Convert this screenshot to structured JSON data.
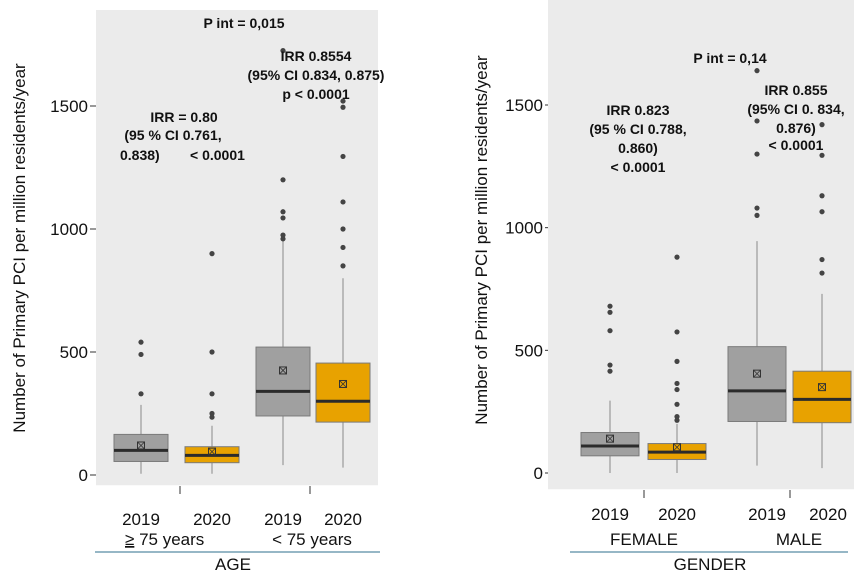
{
  "chart_data": [
    {
      "type": "boxplot",
      "ylabel": "Number of Primary PCI per million residents/year",
      "ylim": [
        -40,
        1870
      ],
      "yticks": [
        0,
        500,
        1000,
        1500
      ],
      "ytick_labels": [
        "0",
        "500",
        "1000",
        "1500"
      ],
      "group_axis_label": "AGE",
      "groups": [
        {
          "label_prefix": "≥",
          "label": " 75 years",
          "years": [
            "2019",
            "2020"
          ]
        },
        {
          "label_prefix": "",
          "label": "< 75 years",
          "years": [
            "2019",
            "2020"
          ]
        }
      ],
      "series": [
        {
          "name": "2019",
          "color": "#a0a0a0"
        },
        {
          "name": "2020",
          "color": "#e8a200"
        }
      ],
      "boxes": [
        {
          "group": "≥ 75 years",
          "year": "2019",
          "min": 5,
          "q1": 55,
          "median": 100,
          "q3": 165,
          "max": 285,
          "mean": 120,
          "outliers": [
            330,
            490,
            540
          ]
        },
        {
          "group": "≥ 75 years",
          "year": "2020",
          "min": 5,
          "q1": 50,
          "median": 80,
          "q3": 115,
          "max": 200,
          "mean": 95,
          "outliers": [
            235,
            250,
            330,
            500,
            900
          ]
        },
        {
          "group": "< 75 years",
          "year": "2019",
          "min": 40,
          "q1": 240,
          "median": 340,
          "q3": 520,
          "max": 950,
          "mean": 425,
          "outliers": [
            960,
            975,
            1045,
            1070,
            1200,
            1725
          ]
        },
        {
          "group": "< 75 years",
          "year": "2020",
          "min": 30,
          "q1": 215,
          "median": 300,
          "q3": 455,
          "max": 800,
          "mean": 370,
          "outliers": [
            850,
            925,
            1000,
            1110,
            1295,
            1495,
            1520
          ]
        }
      ],
      "annotations": {
        "p_int": "P int = 0,015",
        "left": [
          "IRR = 0.80",
          "(95 % CI 0.761,",
          "0.838)",
          "< 0.0001"
        ],
        "right": [
          "IRR 0.8554",
          "(95% CI 0.834, 0.875)",
          "p < 0.0001"
        ]
      }
    },
    {
      "type": "boxplot",
      "ylabel": "Number of Primary PCI per million residents/year",
      "ylim": [
        -40,
        1870
      ],
      "yticks": [
        0,
        500,
        1000,
        1500
      ],
      "ytick_labels": [
        "0",
        "500",
        "1000",
        "1500"
      ],
      "group_axis_label": "GENDER",
      "groups": [
        {
          "label_prefix": "",
          "label": "FEMALE",
          "years": [
            "2019",
            "2020"
          ]
        },
        {
          "label_prefix": "",
          "label": "MALE",
          "years": [
            "2019",
            "2020"
          ]
        }
      ],
      "series": [
        {
          "name": "2019",
          "color": "#a0a0a0"
        },
        {
          "name": "2020",
          "color": "#e8a200"
        }
      ],
      "boxes": [
        {
          "group": "FEMALE",
          "year": "2019",
          "min": 0,
          "q1": 70,
          "median": 110,
          "q3": 165,
          "max": 295,
          "mean": 140,
          "outliers": [
            415,
            440,
            580,
            655,
            680
          ]
        },
        {
          "group": "FEMALE",
          "year": "2020",
          "min": 0,
          "q1": 55,
          "median": 85,
          "q3": 120,
          "max": 200,
          "mean": 105,
          "outliers": [
            215,
            230,
            280,
            340,
            365,
            455,
            575,
            880
          ]
        },
        {
          "group": "MALE",
          "year": "2019",
          "min": 30,
          "q1": 210,
          "median": 335,
          "q3": 515,
          "max": 945,
          "mean": 405,
          "outliers": [
            1050,
            1080,
            1300,
            1435,
            1640
          ]
        },
        {
          "group": "MALE",
          "year": "2020",
          "min": 20,
          "q1": 205,
          "median": 300,
          "q3": 415,
          "max": 730,
          "mean": 350,
          "outliers": [
            815,
            870,
            1065,
            1130,
            1295,
            1420
          ]
        }
      ],
      "annotations": {
        "p_int": "P int = 0,14",
        "left": [
          "IRR 0.823",
          "(95 % CI 0.788,",
          "0.860)",
          "< 0.0001"
        ],
        "right": [
          "IRR 0.855",
          "(95% CI 0. 834,",
          "0.876)",
          "< 0.0001"
        ]
      }
    }
  ]
}
